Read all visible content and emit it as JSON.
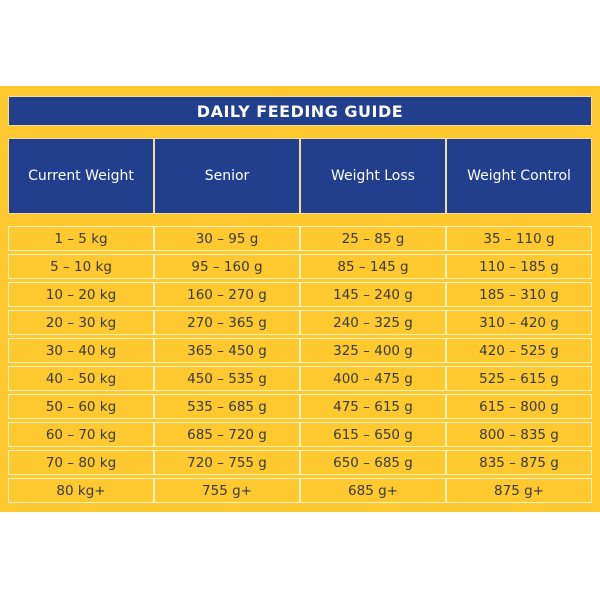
{
  "title": "DAILY FEEDING GUIDE",
  "headers": [
    "Current Weight",
    "Senior",
    "Weight Loss",
    "Weight Control"
  ],
  "rows": [
    [
      "1 – 5 kg",
      "30 – 95 g",
      "25 – 85 g",
      "35 – 110 g"
    ],
    [
      "5 – 10 kg",
      "95 – 160 g",
      "85 – 145 g",
      "110 – 185 g"
    ],
    [
      "10 – 20 kg",
      "160 – 270 g",
      "145 – 240 g",
      "185 – 310 g"
    ],
    [
      "20 – 30 kg",
      "270 – 365 g",
      "240 – 325 g",
      "310 – 420 g"
    ],
    [
      "30 – 40 kg",
      "365 – 450 g",
      "325 – 400 g",
      "420 – 525 g"
    ],
    [
      "40 – 50 kg",
      "450 – 535 g",
      "400 – 475 g",
      "525 – 615 g"
    ],
    [
      "50 – 60 kg",
      "535 – 685 g",
      "475 – 615 g",
      "615 – 800 g"
    ],
    [
      "60 – 70 kg",
      "685 – 720 g",
      "615 – 650 g",
      "800 – 835 g"
    ],
    [
      "70 – 80 kg",
      "720 – 755 g",
      "650 – 685 g",
      "835 – 875 g"
    ],
    [
      "80 kg+",
      "755 g+",
      "685 g+",
      "875 g+"
    ]
  ],
  "colors": {
    "panel": "#fdc92f",
    "header": "#223f8d",
    "border": "#fff3c4",
    "text": "#3a3a3a"
  }
}
